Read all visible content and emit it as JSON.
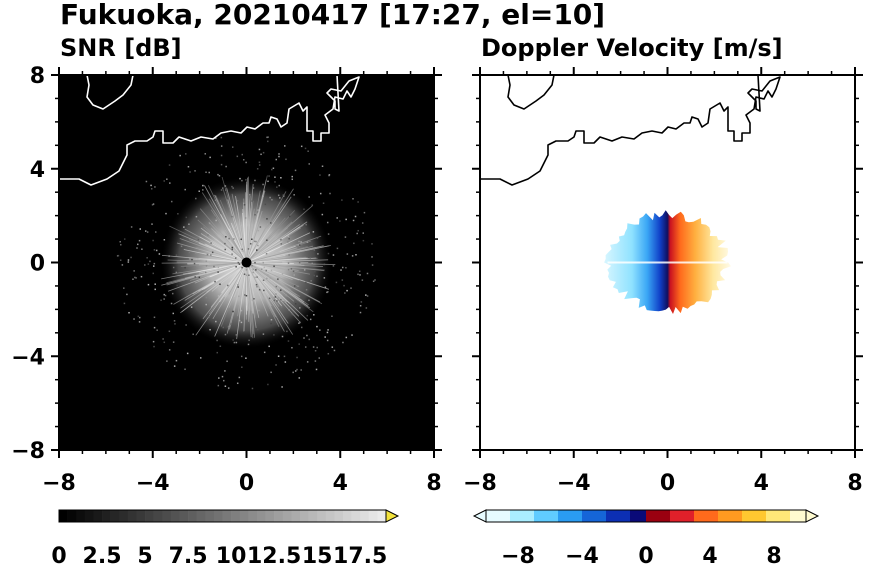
{
  "figure": {
    "title": "Fukuoka, 20210417 [17:27, el=10]"
  },
  "chart_data": [
    {
      "type": "heatmap",
      "title": "SNR [dB]",
      "xlim": [
        -8,
        8
      ],
      "ylim": [
        -8,
        8
      ],
      "x_ticks": [
        "−8",
        "−4",
        "0",
        "4",
        "8"
      ],
      "y_ticks": [
        "8",
        "4",
        "0",
        "−4",
        "−8"
      ],
      "background_color": "#000000",
      "echo_color": "#d8d8d8",
      "radar_site": [
        0,
        0
      ],
      "colorbar": {
        "labels": [
          "0",
          "2.5",
          "5",
          "7.5",
          "10",
          "12.5",
          "15",
          "17.5"
        ],
        "range": [
          0,
          19
        ],
        "extend": "max",
        "extend_color": "#f2e23c"
      }
    },
    {
      "type": "heatmap",
      "title": "Doppler Velocity [m/s]",
      "xlim": [
        -8,
        8
      ],
      "ylim": [
        -8,
        8
      ],
      "x_ticks": [
        "−8",
        "−4",
        "0",
        "4",
        "8"
      ],
      "y_ticks": [
        "8",
        "4",
        "0",
        "−4",
        "−8"
      ],
      "background_color": "#ffffff",
      "colorbar": {
        "labels": [
          "−8",
          "−4",
          "0",
          "4",
          "8"
        ],
        "range": [
          -10,
          10
        ],
        "extend": "both",
        "negative_colors": [
          "#e6fbff",
          "#aaeeff",
          "#60ccff",
          "#2a9cf2",
          "#1565d8",
          "#0c2fb4",
          "#0a0a78"
        ],
        "positive_colors": [
          "#9a0010",
          "#e0202a",
          "#ff6a1c",
          "#ff9a20",
          "#ffc830",
          "#ffe878",
          "#fffbd0"
        ]
      }
    }
  ]
}
